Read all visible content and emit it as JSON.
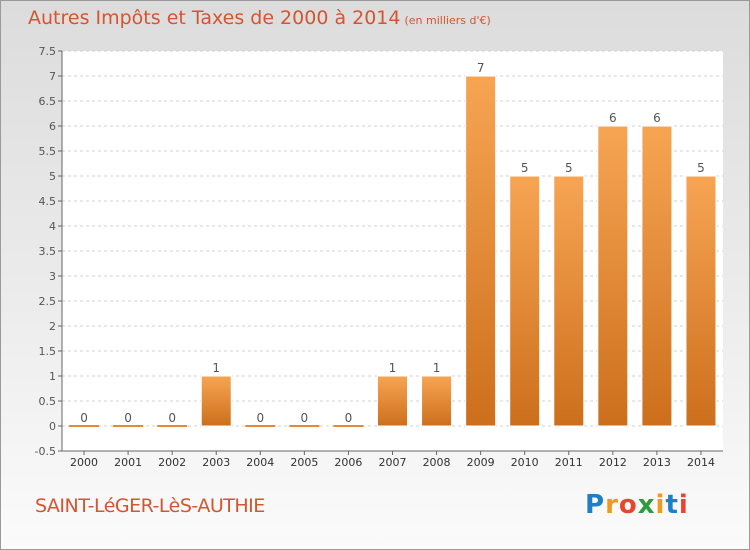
{
  "header": {
    "title": "Autres Impôts et Taxes de 2000 à 2014",
    "unit": "(en milliers d'€)"
  },
  "footer": {
    "commune": "SAINT-LéGER-LèS-AUTHIE",
    "logo": [
      "P",
      "r",
      "o",
      "x",
      "i",
      "t",
      "i"
    ],
    "logo_colors": [
      "#1e7fc6",
      "#f09a1c",
      "#e8452c",
      "#2a9d3f",
      "#f09a1c",
      "#1e7fc6",
      "#e8452c"
    ]
  },
  "chart_data": {
    "type": "bar",
    "title": "Autres Impôts et Taxes de 2000 à 2014",
    "categories": [
      "2000",
      "2001",
      "2002",
      "2003",
      "2004",
      "2005",
      "2006",
      "2007",
      "2008",
      "2009",
      "2010",
      "2011",
      "2012",
      "2013",
      "2014"
    ],
    "values": [
      0,
      0,
      0,
      1,
      0,
      0,
      0,
      1,
      1,
      7,
      5,
      5,
      6,
      6,
      5
    ],
    "data_labels": [
      "0",
      "0",
      "0",
      "1",
      "0",
      "0",
      "0",
      "1",
      "1",
      "7",
      "5",
      "5",
      "6",
      "6",
      "5"
    ],
    "y_ticks": [
      "7.5",
      "7",
      "6.5",
      "6",
      "5.5",
      "5",
      "4.5",
      "4",
      "3.5",
      "3",
      "2.5",
      "2",
      "1.5",
      "1",
      "0.5",
      "0",
      "-0.5"
    ],
    "ylim": [
      -0.5,
      7.5
    ],
    "grid": "horizontal dashed",
    "bar_color_light": "#f7a553",
    "bar_color_dark": "#cc6f1c",
    "text_color": "#d4552f"
  }
}
